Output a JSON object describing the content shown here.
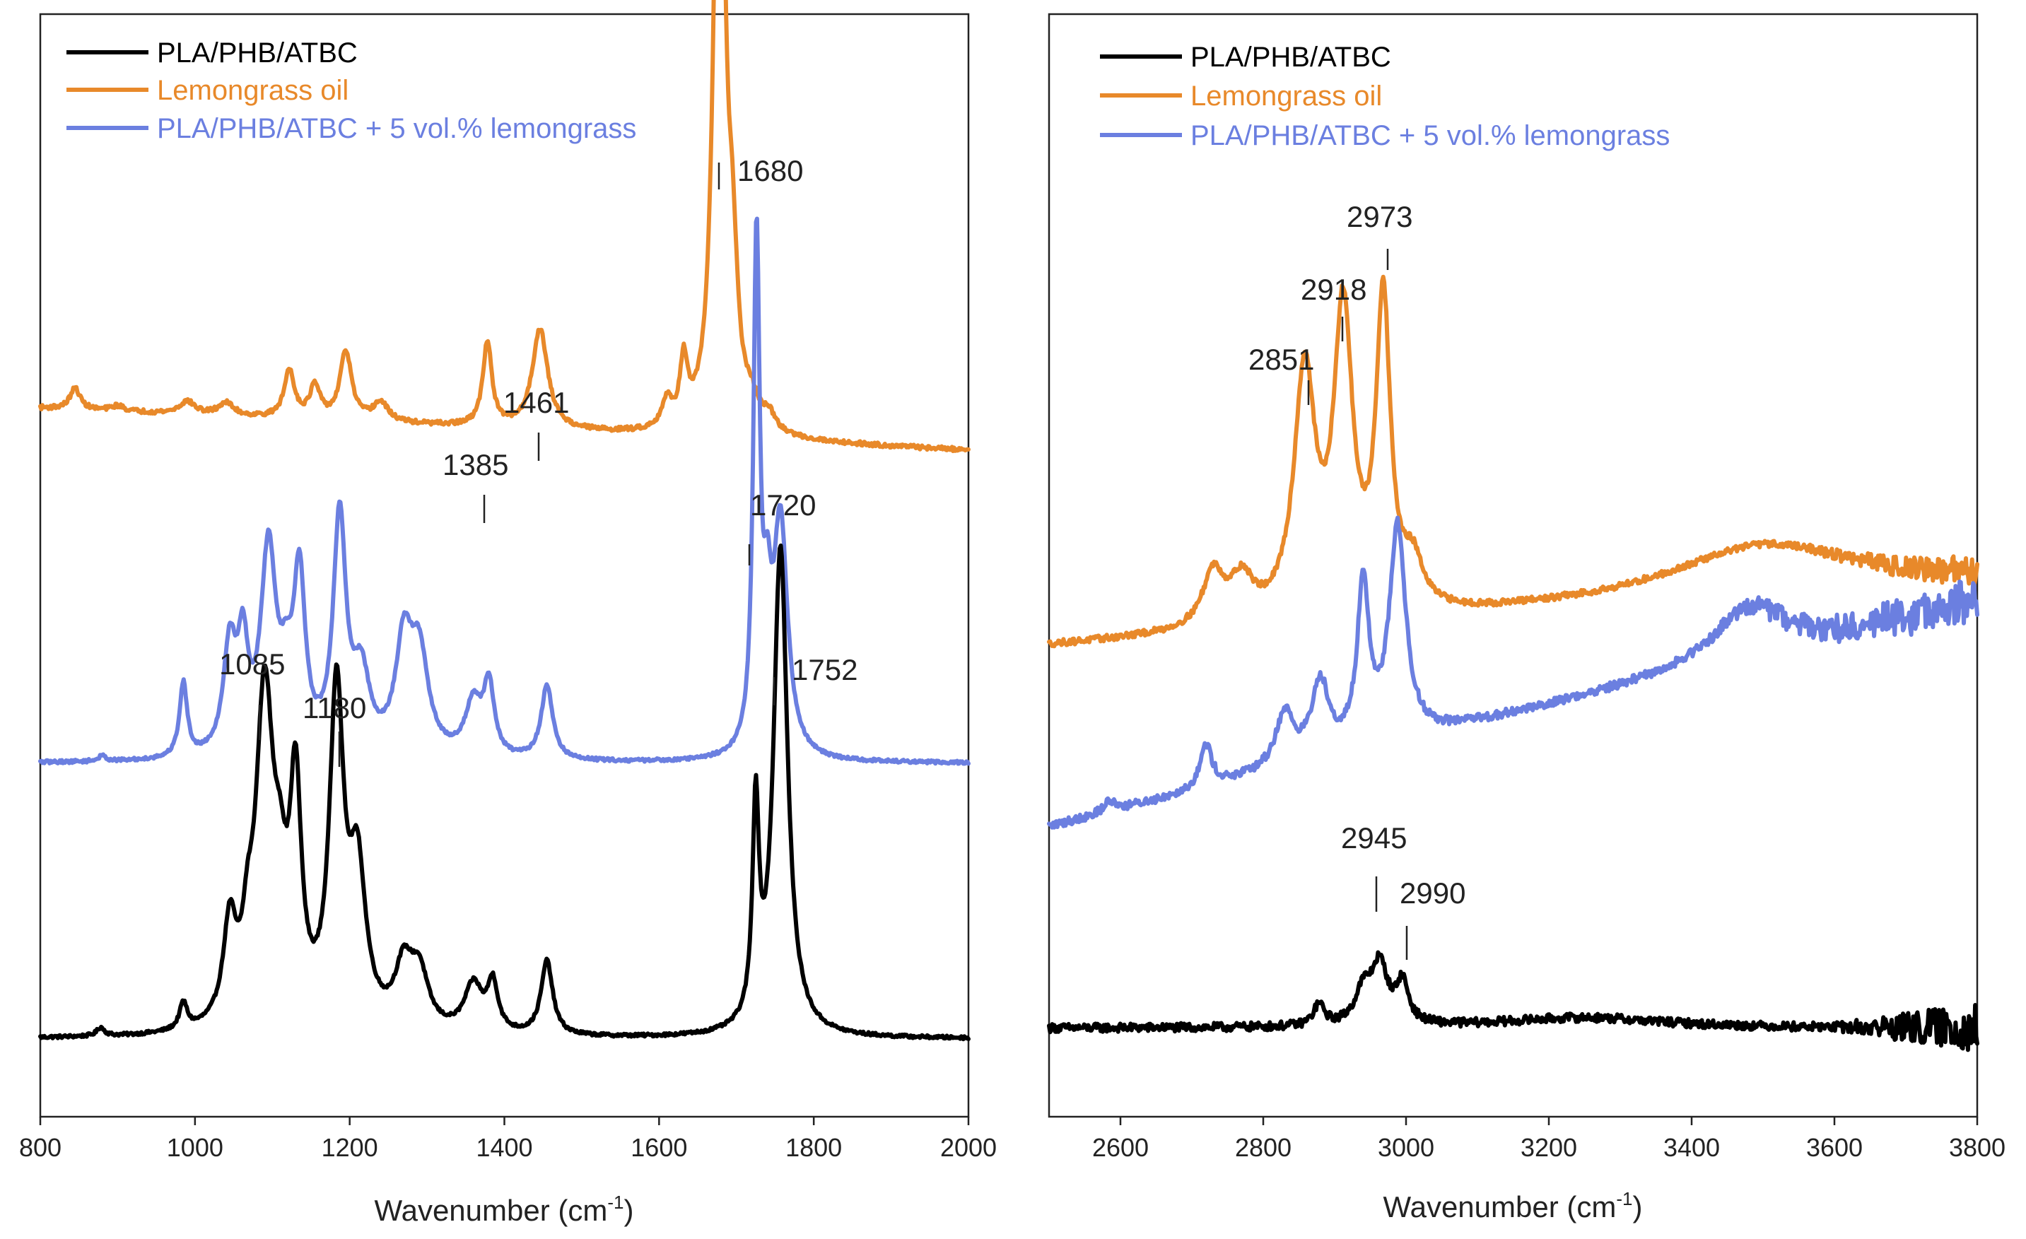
{
  "chart_data": [
    {
      "type": "line",
      "xlabel": "Wavenumber (cm",
      "xlabel_sup": "-1",
      "xlabel_close": ")",
      "xlim": [
        800,
        2000
      ],
      "xticks": [
        "800",
        "1000",
        "1200",
        "1400",
        "1600",
        "1800",
        "2000"
      ],
      "legend_position": "top-left",
      "y_ticks_shown": false,
      "series": [
        {
          "name": "PLA/PHB/ATBC",
          "color": "#000000",
          "baseline": 0.06,
          "slope": 0.0,
          "noise": 0.0015,
          "peaks": [
            [
              878,
              0.008,
              6
            ],
            [
              985,
              0.025,
              6
            ],
            [
              1045,
              0.09,
              10
            ],
            [
              1068,
              0.05,
              8
            ],
            [
              1090,
              0.31,
              14
            ],
            [
              1110,
              0.08,
              10
            ],
            [
              1130,
              0.21,
              9
            ],
            [
              1183,
              0.31,
              11
            ],
            [
              1210,
              0.14,
              13
            ],
            [
              1270,
              0.055,
              14
            ],
            [
              1290,
              0.05,
              14
            ],
            [
              1360,
              0.045,
              14
            ],
            [
              1385,
              0.045,
              8
            ],
            [
              1455,
              0.07,
              9
            ],
            [
              1725,
              0.2,
              5
            ],
            [
              1757,
              0.46,
              11
            ]
          ]
        },
        {
          "name": "Lemongrass oil",
          "color": "#E8892A",
          "baseline": 0.655,
          "slope": -3.33e-05,
          "noise": 0.002,
          "peaks": [
            [
              845,
              0.02,
              8
            ],
            [
              900,
              0.005,
              10
            ],
            [
              990,
              0.012,
              12
            ],
            [
              1040,
              0.012,
              12
            ],
            [
              1122,
              0.045,
              8
            ],
            [
              1155,
              0.03,
              8
            ],
            [
              1195,
              0.065,
              9
            ],
            [
              1240,
              0.018,
              12
            ],
            [
              1378,
              0.08,
              7
            ],
            [
              1446,
              0.095,
              12
            ],
            [
              1610,
              0.025,
              8
            ],
            [
              1632,
              0.06,
              6
            ],
            [
              1678,
              0.74,
              8
            ],
            [
              1695,
              0.12,
              8
            ],
            [
              1720,
              0.02,
              10
            ],
            [
              1742,
              0.015,
              10
            ]
          ]
        },
        {
          "name": "PLA/PHB/ATBC + 5 vol.% lemongrass",
          "color": "#6B7FE0",
          "baseline": 0.32,
          "slope": 0.0,
          "noise": 0.0015,
          "peaks": [
            [
              880,
              0.005,
              6
            ],
            [
              985,
              0.07,
              6
            ],
            [
              1045,
              0.1,
              10
            ],
            [
              1062,
              0.09,
              8
            ],
            [
              1095,
              0.19,
              12
            ],
            [
              1118,
              0.05,
              10
            ],
            [
              1135,
              0.16,
              9
            ],
            [
              1187,
              0.22,
              10
            ],
            [
              1215,
              0.07,
              13
            ],
            [
              1270,
              0.1,
              13
            ],
            [
              1290,
              0.09,
              14
            ],
            [
              1360,
              0.05,
              13
            ],
            [
              1380,
              0.065,
              8
            ],
            [
              1455,
              0.07,
              9
            ],
            [
              1726,
              0.48,
              5
            ],
            [
              1740,
              0.1,
              6
            ],
            [
              1757,
              0.22,
              11
            ]
          ]
        }
      ],
      "annotations": [
        {
          "label": "1680",
          "x": 1680
        },
        {
          "label": "1461",
          "x": 1444
        },
        {
          "label": "1385",
          "x": 1375
        },
        {
          "label": "1720",
          "x": 1718
        },
        {
          "label": "1085",
          "x": 1083
        },
        {
          "label": "1180",
          "x": 1185
        },
        {
          "label": "1752",
          "x": 1747
        }
      ]
    },
    {
      "type": "line",
      "xlabel": "Wavenumber (cm",
      "xlabel_sup": "-1",
      "xlabel_close": ")",
      "xlim": [
        2500,
        3800
      ],
      "xticks": [
        "2600",
        "2800",
        "3000",
        "3200",
        "3400",
        "3600",
        "3800"
      ],
      "legend_position": "top-left",
      "y_ticks_shown": false,
      "series": [
        {
          "name": "PLA/PHB/ATBC",
          "color": "#000000",
          "baseline": 0.07,
          "slope": 0.0,
          "noise": 0.004,
          "noise_ramp": [
            3600,
            0.02
          ],
          "peaks": [
            [
              2878,
              0.02,
              9
            ],
            [
              2940,
              0.03,
              14
            ],
            [
              2963,
              0.055,
              14
            ],
            [
              2995,
              0.038,
              10
            ],
            [
              3250,
              0.01,
              140
            ]
          ]
        },
        {
          "name": "Lemongrass oil",
          "color": "#E8892A",
          "baseline": 0.43,
          "slope": 4.62e-05,
          "noise": 0.003,
          "noise_ramp": [
            3550,
            0.012
          ],
          "peaks": [
            [
              2730,
              0.05,
              18
            ],
            [
              2770,
              0.04,
              20
            ],
            [
              2858,
              0.23,
              18
            ],
            [
              2912,
              0.28,
              16
            ],
            [
              2968,
              0.29,
              12
            ],
            [
              3010,
              0.04,
              16
            ],
            [
              3500,
              0.05,
              160
            ]
          ]
        },
        {
          "name": "PLA/PHB/ATBC + 5 vol.% lemongrass",
          "color": "#6B7FE0",
          "baseline": 0.26,
          "slope": 0.000162,
          "noise": 0.004,
          "noise_ramp": [
            3400,
            0.02
          ],
          "peaks": [
            [
              2585,
              0.01,
              10
            ],
            [
              2720,
              0.04,
              10
            ],
            [
              2830,
              0.05,
              15
            ],
            [
              2880,
              0.07,
              15
            ],
            [
              2940,
              0.15,
              10
            ],
            [
              2988,
              0.2,
              14
            ],
            [
              3480,
              0.05,
              60
            ]
          ]
        }
      ],
      "annotations": [
        {
          "label": "2973",
          "x": 2970
        },
        {
          "label": "2918",
          "x": 2905
        },
        {
          "label": "2851",
          "x": 2860
        },
        {
          "label": "2945",
          "x": 2955
        },
        {
          "label": "2990",
          "x": 2995
        }
      ]
    }
  ]
}
